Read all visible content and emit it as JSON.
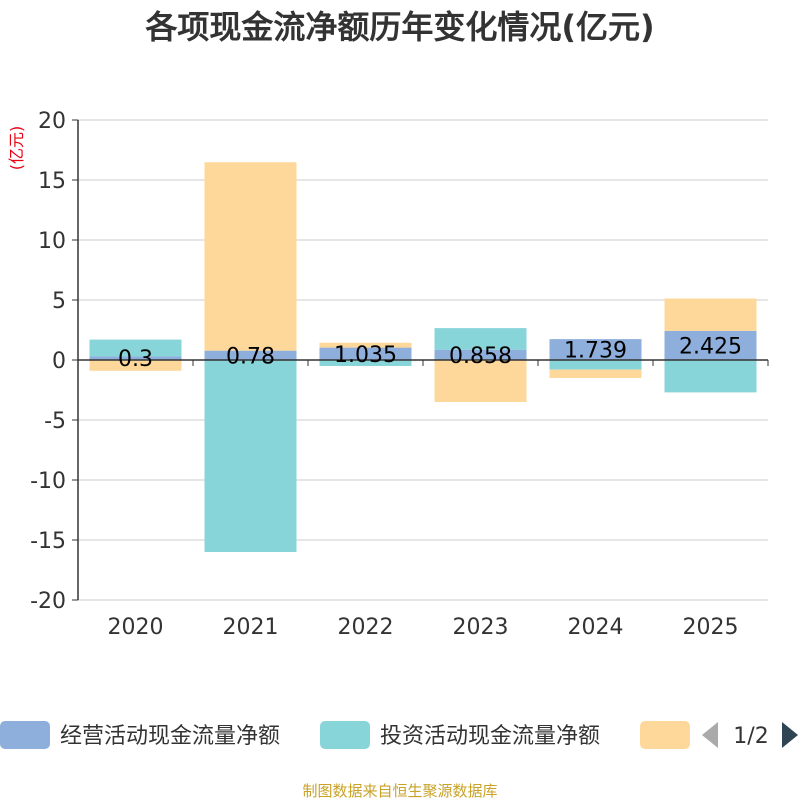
{
  "chart_data": {
    "type": "bar",
    "stacked": true,
    "title": "各项现金流净额历年变化情况(亿元)",
    "ylabel": "(亿元)",
    "ylim": [
      -20,
      20
    ],
    "yticks": [
      20,
      15,
      10,
      5,
      0,
      -5,
      -10,
      -15,
      -20
    ],
    "ytick_labels": [
      "20",
      "15",
      "10",
      "5",
      "0",
      "-5",
      "-10",
      "-15",
      "-20"
    ],
    "categories": [
      "2020",
      "2021",
      "2022",
      "2023",
      "2024",
      "2025"
    ],
    "series": [
      {
        "name": "经营活动现金流量净额",
        "color": "#8eaedb",
        "values": [
          0.3,
          0.78,
          1.035,
          0.858,
          1.739,
          2.425
        ],
        "labels": [
          "0.3",
          "0.78",
          "1.035",
          "0.858",
          "1.739",
          "2.425"
        ]
      },
      {
        "name": "投资活动现金流量净额",
        "color": "#87d4d9",
        "values": [
          1.4,
          -16.0,
          -0.5,
          1.8,
          -0.8,
          -2.7
        ]
      },
      {
        "name": "",
        "color": "#fdd89a",
        "values": [
          -0.9,
          15.7,
          0.4,
          -3.5,
          -0.7,
          2.7
        ]
      }
    ],
    "grid": true,
    "legend_position": "bottom",
    "legend_page": "1/2",
    "source": "制图数据来自恒生聚源数据库"
  }
}
